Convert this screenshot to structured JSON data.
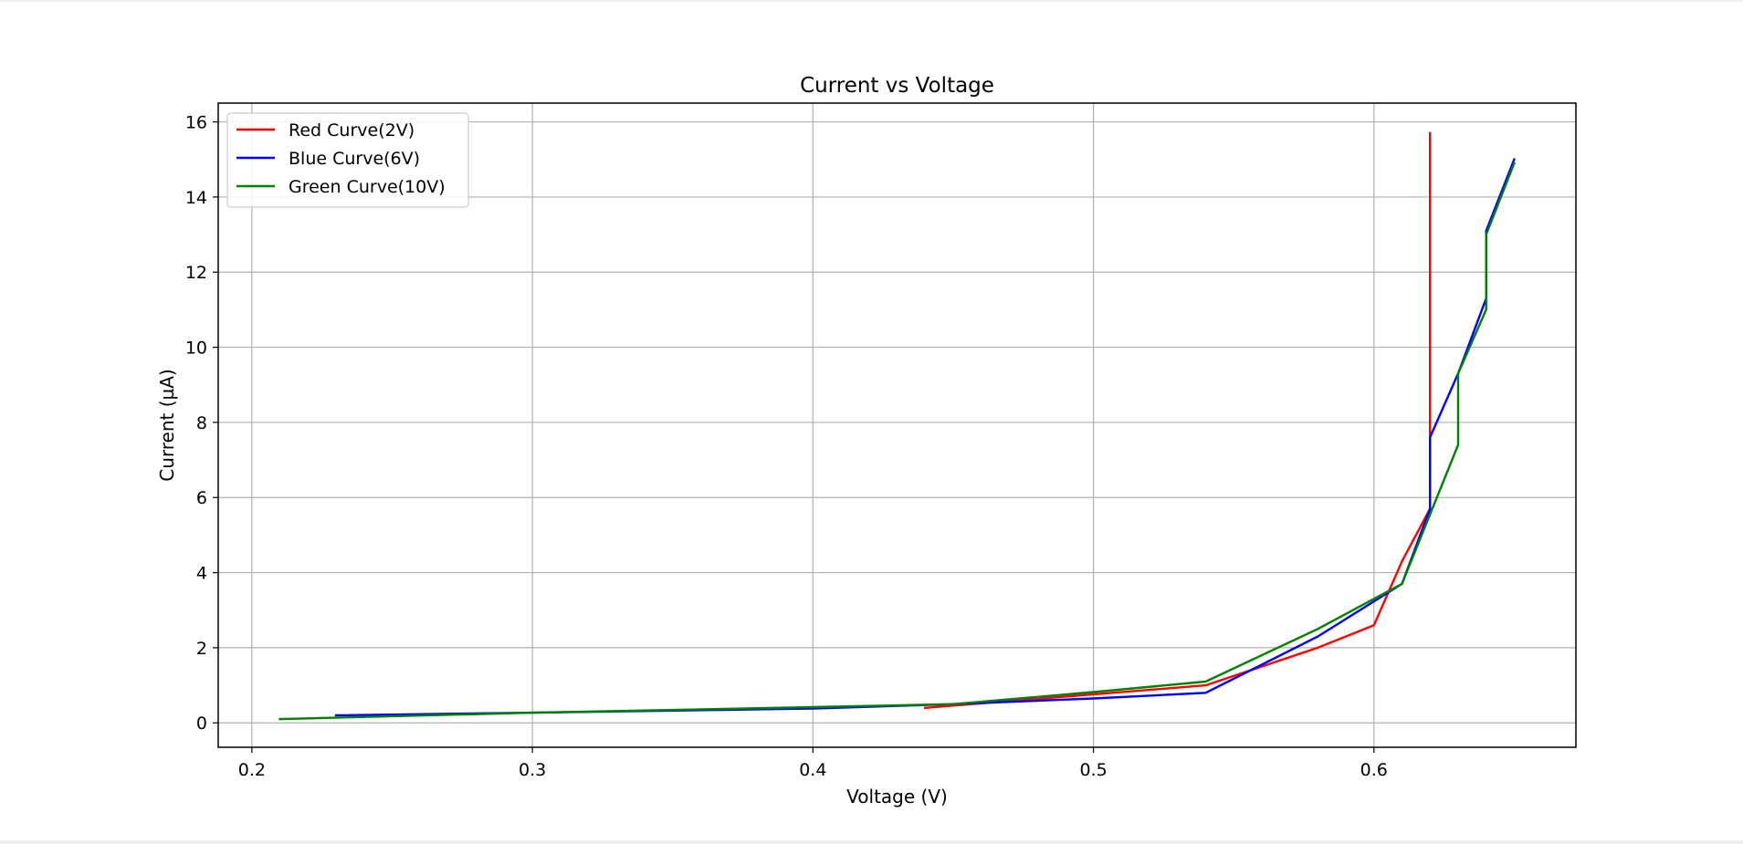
{
  "chart_data": {
    "type": "line",
    "title": "Current vs Voltage",
    "xlabel": "Voltage (V)",
    "ylabel": "Current (µA)",
    "xlim": [
      0.188,
      0.672
    ],
    "ylim": [
      -0.65,
      16.5
    ],
    "xticks": [
      0.2,
      0.3,
      0.4,
      0.5,
      0.6
    ],
    "xtick_labels": [
      "0.2",
      "0.3",
      "0.4",
      "0.5",
      "0.6"
    ],
    "yticks": [
      0,
      2,
      4,
      6,
      8,
      10,
      12,
      14,
      16
    ],
    "ytick_labels": [
      "0",
      "2",
      "4",
      "6",
      "8",
      "10",
      "12",
      "14",
      "16"
    ],
    "grid": true,
    "legend_position": "top-left",
    "series": [
      {
        "name": "Red Curve(2V)",
        "color": "#ff0000",
        "x": [
          0.44,
          0.54,
          0.58,
          0.6,
          0.61,
          0.62,
          0.62
        ],
        "y": [
          0.4,
          1.0,
          2.0,
          2.6,
          4.3,
          5.7,
          15.7
        ]
      },
      {
        "name": "Blue Curve(6V)",
        "color": "#0000ff",
        "x": [
          0.23,
          0.3,
          0.4,
          0.45,
          0.5,
          0.54,
          0.58,
          0.61,
          0.62,
          0.62,
          0.63,
          0.64,
          0.64,
          0.65
        ],
        "y": [
          0.2,
          0.27,
          0.38,
          0.5,
          0.65,
          0.8,
          2.3,
          3.7,
          5.7,
          7.6,
          9.3,
          11.3,
          13.1,
          15.0
        ]
      },
      {
        "name": "Green Curve(10V)",
        "color": "#008000",
        "x": [
          0.21,
          0.3,
          0.4,
          0.45,
          0.5,
          0.54,
          0.58,
          0.61,
          0.63,
          0.63,
          0.64,
          0.64,
          0.65
        ],
        "y": [
          0.1,
          0.27,
          0.42,
          0.5,
          0.82,
          1.1,
          2.5,
          3.7,
          7.4,
          9.3,
          11.0,
          13.0,
          14.9
        ]
      }
    ]
  }
}
